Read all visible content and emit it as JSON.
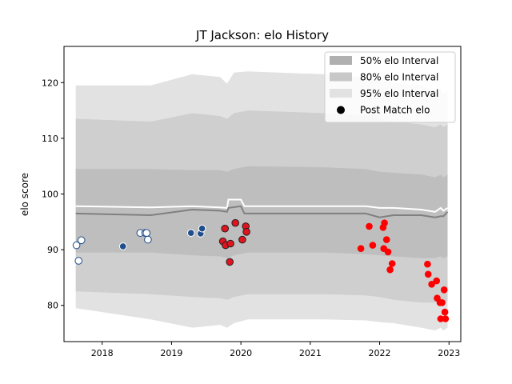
{
  "chart_data": {
    "type": "scatter",
    "title": "JT Jackson: elo History",
    "xlabel": "",
    "ylabel": "elo score",
    "xlim": [
      2017.45,
      2023.17
    ],
    "ylim": [
      73.5,
      126.5
    ],
    "x_ticks": [
      2018,
      2019,
      2020,
      2021,
      2022,
      2023
    ],
    "y_ticks": [
      80,
      90,
      100,
      110,
      120
    ],
    "legend_position": "top-right",
    "legend": [
      {
        "label": "50% elo Interval",
        "kind": "band",
        "color": "#b0b0b0"
      },
      {
        "label": "80% elo Interval",
        "kind": "band",
        "color": "#c8c8c8"
      },
      {
        "label": "95% elo Interval",
        "kind": "band",
        "color": "#e2e2e2"
      },
      {
        "label": "Post Match elo",
        "kind": "marker",
        "color": "#000000"
      }
    ],
    "bands": {
      "x": [
        2017.62,
        2018.7,
        2019.3,
        2019.7,
        2019.8,
        2019.9,
        2020.1,
        2021.2,
        2021.8,
        2022.0,
        2022.2,
        2022.6,
        2022.8,
        2022.88,
        2022.92,
        2022.98
      ],
      "p95_upper": [
        119.5,
        119.5,
        121.5,
        121.0,
        119.8,
        121.8,
        122.0,
        121.5,
        121.0,
        120.5,
        120.0,
        119.5,
        118.5,
        119.0,
        118.0,
        118.5
      ],
      "p80_upper": [
        113.5,
        113.0,
        114.5,
        114.0,
        113.5,
        114.5,
        115.0,
        114.5,
        114.0,
        113.5,
        113.0,
        112.5,
        112.0,
        112.5,
        112.0,
        112.5
      ],
      "p50_upper": [
        104.5,
        104.5,
        104.3,
        104.3,
        104.0,
        104.5,
        105.0,
        104.8,
        104.5,
        104.0,
        103.8,
        103.5,
        103.0,
        103.5,
        103.0,
        103.5
      ],
      "p50_lower": [
        89.5,
        89.5,
        89.0,
        88.8,
        88.5,
        89.0,
        89.5,
        89.5,
        89.2,
        89.0,
        88.8,
        88.5,
        88.5,
        88.8,
        88.5,
        88.8
      ],
      "p80_lower": [
        82.5,
        82.0,
        81.5,
        81.3,
        81.0,
        81.5,
        82.0,
        82.0,
        81.8,
        81.5,
        81.0,
        80.5,
        80.5,
        80.8,
        80.5,
        80.8
      ],
      "p95_lower": [
        79.5,
        77.5,
        76.0,
        76.5,
        76.0,
        76.8,
        77.5,
        77.5,
        77.3,
        77.0,
        76.8,
        76.0,
        75.5,
        76.0,
        75.5,
        76.0
      ],
      "color_p95": "#e2e2e2",
      "color_p80": "#cfcfcf",
      "color_p50": "#bebebe"
    },
    "lines": [
      {
        "role": "white",
        "color": "#ffffff",
        "x": [
          2017.62,
          2018.7,
          2019.3,
          2019.7,
          2019.8,
          2019.82,
          2020.0,
          2020.05,
          2021.2,
          2021.8,
          2022.0,
          2022.2,
          2022.6,
          2022.8,
          2022.88,
          2022.92,
          2022.98
        ],
        "y": [
          97.8,
          97.6,
          97.8,
          97.6,
          97.5,
          99.0,
          99.0,
          97.8,
          97.8,
          97.8,
          97.5,
          97.5,
          97.2,
          96.8,
          97.5,
          97.0,
          97.5
        ]
      },
      {
        "role": "median",
        "color": "#808080",
        "x": [
          2017.62,
          2018.7,
          2019.3,
          2019.7,
          2019.8,
          2019.82,
          2020.0,
          2020.05,
          2021.2,
          2021.8,
          2022.0,
          2022.2,
          2022.6,
          2022.8,
          2022.88,
          2022.92,
          2022.98
        ],
        "y": [
          96.5,
          96.2,
          97.2,
          97.0,
          96.8,
          97.5,
          97.8,
          96.5,
          96.5,
          96.5,
          95.8,
          96.2,
          96.2,
          95.8,
          96.0,
          96.0,
          96.8
        ]
      }
    ],
    "series": [
      {
        "style": "white",
        "fill": "#ffffff",
        "stroke": "#1f4e8c",
        "x": [
          2017.63,
          2017.66,
          2017.7,
          2018.55,
          2018.62,
          2018.66,
          2018.64
        ],
        "y": [
          90.8,
          88.0,
          91.7,
          93.0,
          93.0,
          91.8,
          93.0
        ]
      },
      {
        "style": "navy",
        "fill": "#1f4e8c",
        "stroke": "#ffffff",
        "x": [
          2018.3,
          2019.28,
          2019.42,
          2019.44
        ],
        "y": [
          90.6,
          93.0,
          92.9,
          93.8
        ]
      },
      {
        "style": "red-outlined",
        "fill": "#e0141e",
        "stroke": "#222222",
        "x": [
          2019.77,
          2019.74,
          2019.78,
          2019.85,
          2019.92,
          2020.02,
          2020.07,
          2020.08,
          2019.84
        ],
        "y": [
          93.8,
          91.5,
          90.8,
          91.1,
          94.8,
          91.8,
          94.2,
          93.2,
          87.8
        ]
      },
      {
        "style": "red",
        "fill": "#ff0000",
        "stroke": "none",
        "x": [
          2021.73,
          2021.85,
          2021.9,
          2022.05,
          2022.07,
          2022.06,
          2022.1,
          2022.12,
          2022.15,
          2022.18,
          2022.69,
          2022.7,
          2022.75,
          2022.82,
          2022.83,
          2022.87,
          2022.9,
          2022.93,
          2022.94,
          2022.95,
          2022.88
        ],
        "y": [
          90.2,
          94.2,
          90.8,
          94.0,
          94.8,
          90.2,
          91.8,
          89.6,
          86.4,
          87.5,
          87.4,
          85.6,
          83.8,
          84.4,
          81.3,
          80.5,
          80.5,
          82.8,
          78.8,
          77.6,
          77.6
        ]
      }
    ]
  }
}
